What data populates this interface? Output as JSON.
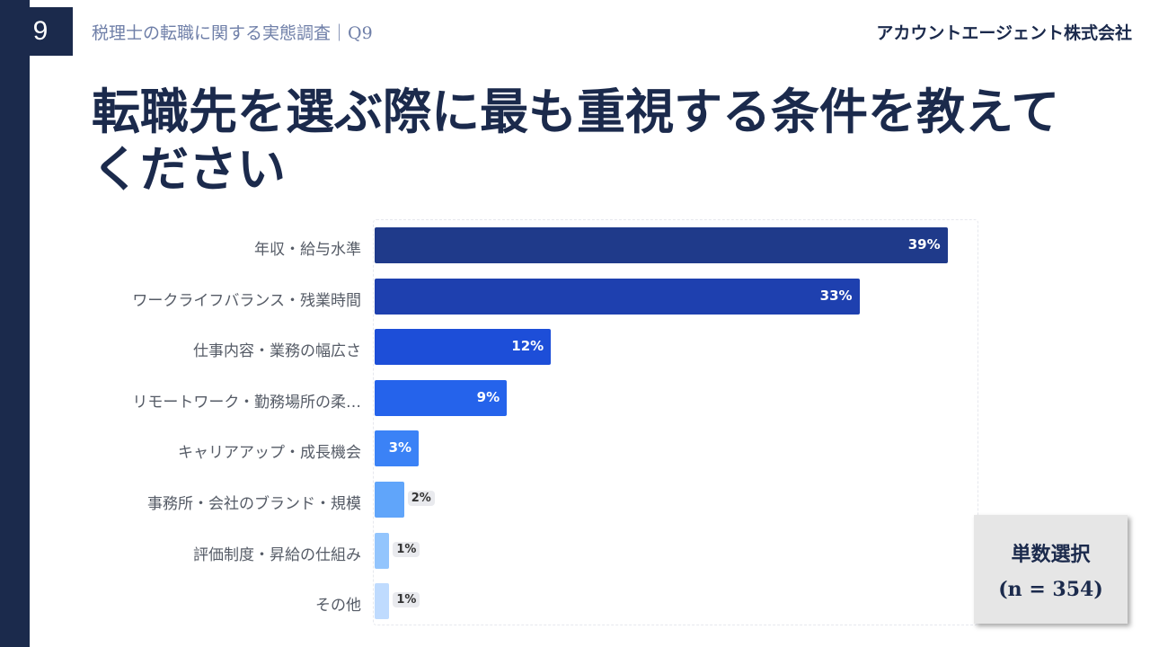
{
  "header": {
    "page_number": "9",
    "subtitle": "税理士の転職に関する実態調査｜Q9",
    "company": "アカウントエージェント株式会社"
  },
  "title_line1": "転職先を選ぶ際に最も重視する条件を教えて",
  "title_line2": "ください",
  "note": {
    "line1": "単数選択",
    "line2": "(n = 354)"
  },
  "colors": {
    "sidebar": "#1b2a4c",
    "bars": [
      "#1f3a8a",
      "#1e40af",
      "#1d4ed8",
      "#2563eb",
      "#3b82f6",
      "#60a5fa",
      "#93c5fd",
      "#bfdbfe"
    ]
  },
  "chart_data": {
    "type": "bar",
    "orientation": "horizontal",
    "categories": [
      "年収・給与水準",
      "ワークライフバランス・残業時間",
      "仕事内容・業務の幅広さ",
      "リモートワーク・勤務場所の柔…",
      "キャリアアップ・成長機会",
      "事務所・会社のブランド・規模",
      "評価制度・昇給の仕組み",
      "その他"
    ],
    "values": [
      39,
      33,
      12,
      9,
      3,
      2,
      1,
      1
    ],
    "value_labels": [
      "39%",
      "33%",
      "12%",
      "9%",
      "3%",
      "2%",
      "1%",
      "1%"
    ],
    "unit": "%",
    "xlim": [
      0,
      40
    ],
    "grid": false,
    "legend": "none"
  }
}
